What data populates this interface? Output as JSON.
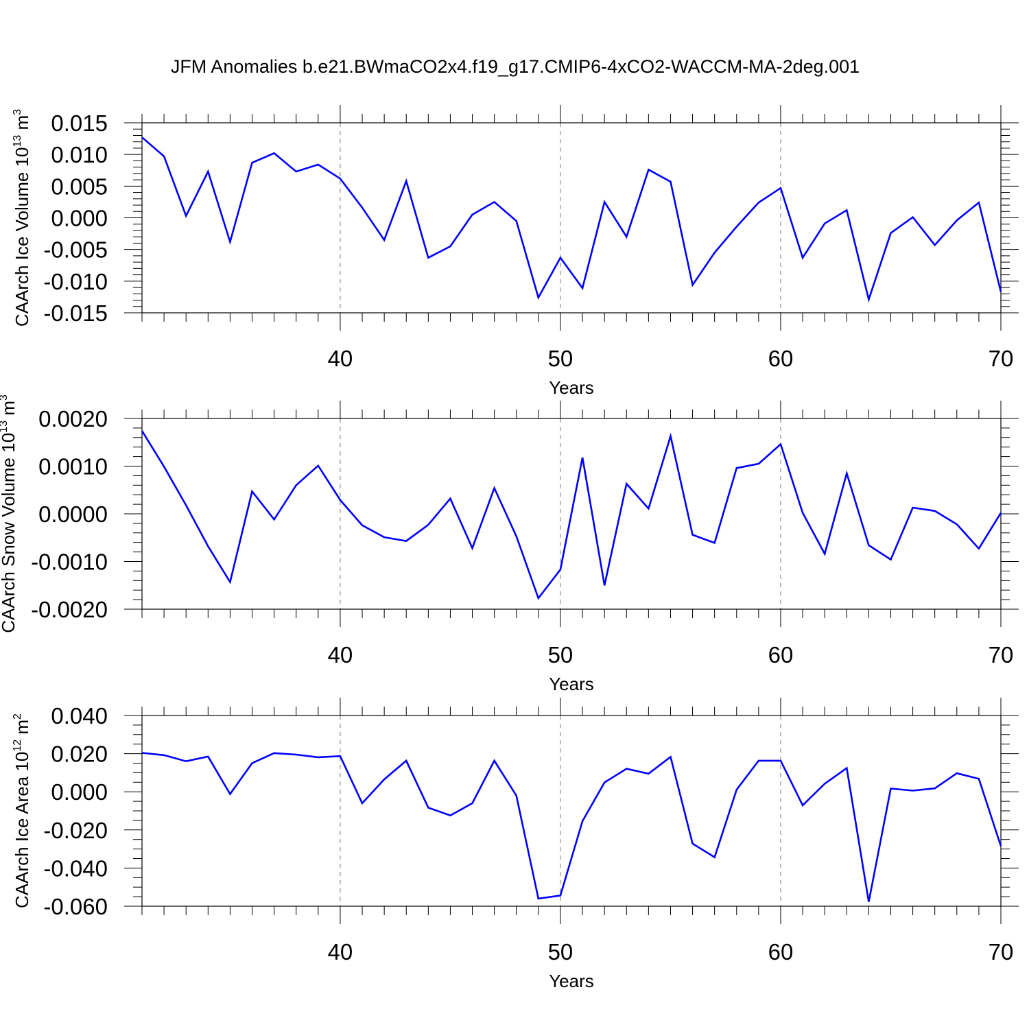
{
  "title": "JFM Anomalies b.e21.BWmaCO2x4.f19_g17.CMIP6-4xCO2-WACCM-MA-2deg.001",
  "colors": {
    "series": "#0000ff",
    "grid": "#777777",
    "axes": "#000000"
  },
  "chart_data": [
    {
      "type": "line",
      "ylabel": {
        "main": "CAArch Ice Volume 10",
        "sup": "13",
        "unit": " m",
        "unit_sup": "3"
      },
      "xlabel": "Years",
      "xlim": [
        31,
        70
      ],
      "ylim": [
        -0.015,
        0.015
      ],
      "yticks": [
        -0.015,
        -0.01,
        -0.005,
        0.0,
        0.005,
        0.01,
        0.015
      ],
      "ytick_labels": [
        "-0.015",
        "-0.010",
        "-0.005",
        "0.000",
        "0.005",
        "0.010",
        "0.015"
      ],
      "yminor_step": 0.001,
      "xticks": [
        40,
        50,
        60,
        70
      ],
      "xtick_labels": [
        "40",
        "50",
        "60",
        "70"
      ],
      "xminor_step": 1,
      "grid_x": [
        40,
        50,
        60
      ],
      "x": [
        31,
        32,
        33,
        34,
        35,
        36,
        37,
        38,
        39,
        40,
        41,
        42,
        43,
        44,
        45,
        46,
        47,
        48,
        49,
        50,
        51,
        52,
        53,
        54,
        55,
        56,
        57,
        58,
        59,
        60,
        61,
        62,
        63,
        64,
        65,
        66,
        67,
        68,
        69,
        70
      ],
      "y": [
        0.0127,
        0.0097,
        0.0003,
        0.0073,
        -0.0038,
        0.0087,
        0.0102,
        0.0073,
        0.0084,
        0.0062,
        0.0016,
        -0.0035,
        0.0058,
        -0.0063,
        -0.0045,
        0.0005,
        0.0025,
        -0.0005,
        -0.0126,
        -0.0063,
        -0.0111,
        0.0025,
        -0.003,
        0.0076,
        0.0057,
        -0.0106,
        -0.0055,
        -0.0014,
        0.0024,
        0.0047,
        -0.0063,
        -0.0009,
        0.0012,
        -0.0129,
        -0.0024,
        0.0001,
        -0.0043,
        -0.0004,
        0.0024,
        -0.0117
      ]
    },
    {
      "type": "line",
      "ylabel": {
        "main": "CAArch Snow Volume 10",
        "sup": "13",
        "unit": " m",
        "unit_sup": "3"
      },
      "xlabel": "Years",
      "xlim": [
        31,
        70
      ],
      "ylim": [
        -0.002,
        0.002
      ],
      "yticks": [
        -0.002,
        -0.001,
        0.0,
        0.001,
        0.002
      ],
      "ytick_labels": [
        "-0.0020",
        "-0.0010",
        "0.0000",
        "0.0010",
        "0.0020"
      ],
      "yminor_step": 0.0002,
      "xticks": [
        40,
        50,
        60,
        70
      ],
      "xtick_labels": [
        "40",
        "50",
        "60",
        "70"
      ],
      "xminor_step": 1,
      "grid_x": [
        40,
        50,
        60
      ],
      "x": [
        31,
        32,
        33,
        34,
        35,
        36,
        37,
        38,
        39,
        40,
        41,
        42,
        43,
        44,
        45,
        46,
        47,
        48,
        49,
        50,
        51,
        52,
        53,
        54,
        55,
        56,
        57,
        58,
        59,
        60,
        61,
        62,
        63,
        64,
        65,
        66,
        67,
        68,
        69,
        70
      ],
      "y": [
        0.00174,
        0.00099,
        0.00018,
        -0.00068,
        -0.00143,
        0.00047,
        -0.00012,
        0.0006,
        0.00101,
        0.00029,
        -0.00024,
        -0.00049,
        -0.00057,
        -0.00023,
        0.00032,
        -0.00072,
        0.00054,
        -0.00047,
        -0.00177,
        -0.00117,
        0.00118,
        -0.0015,
        0.00063,
        0.00011,
        0.00163,
        -0.00044,
        -0.00061,
        0.00096,
        0.00105,
        0.00146,
        2e-05,
        -0.00084,
        0.00085,
        -0.00066,
        -0.00096,
        0.00013,
        6e-05,
        -0.00022,
        -0.00073,
        2e-05
      ]
    },
    {
      "type": "line",
      "ylabel": {
        "main": "CAArch Ice Area 10",
        "sup": "12",
        "unit": " m",
        "unit_sup": "2"
      },
      "xlabel": "Years",
      "xlim": [
        31,
        70
      ],
      "ylim": [
        -0.06,
        0.04
      ],
      "yticks": [
        -0.06,
        -0.04,
        -0.02,
        0.0,
        0.02,
        0.04
      ],
      "ytick_labels": [
        "-0.060",
        "-0.040",
        "-0.020",
        "0.000",
        "0.020",
        "0.040"
      ],
      "yminor_step": 0.005,
      "xticks": [
        40,
        50,
        60,
        70
      ],
      "xtick_labels": [
        "40",
        "50",
        "60",
        "70"
      ],
      "xminor_step": 1,
      "grid_x": [
        40,
        50,
        60
      ],
      "x": [
        31,
        32,
        33,
        34,
        35,
        36,
        37,
        38,
        39,
        40,
        41,
        42,
        43,
        44,
        45,
        46,
        47,
        48,
        49,
        50,
        51,
        52,
        53,
        54,
        55,
        56,
        57,
        58,
        59,
        60,
        61,
        62,
        63,
        64,
        65,
        66,
        67,
        68,
        69,
        70
      ],
      "y": [
        0.0204,
        0.0192,
        0.016,
        0.0185,
        -0.0012,
        0.015,
        0.0203,
        0.0195,
        0.0181,
        0.0187,
        -0.006,
        0.0065,
        0.0163,
        -0.0083,
        -0.0124,
        -0.006,
        0.0163,
        -0.002,
        -0.056,
        -0.0544,
        -0.0154,
        0.0049,
        0.0121,
        0.0095,
        0.0183,
        -0.0272,
        -0.0343,
        0.0011,
        0.0163,
        0.0163,
        -0.0071,
        0.0042,
        0.0124,
        -0.0577,
        0.0017,
        0.0006,
        0.0018,
        0.0097,
        0.0068,
        -0.0285
      ]
    }
  ]
}
